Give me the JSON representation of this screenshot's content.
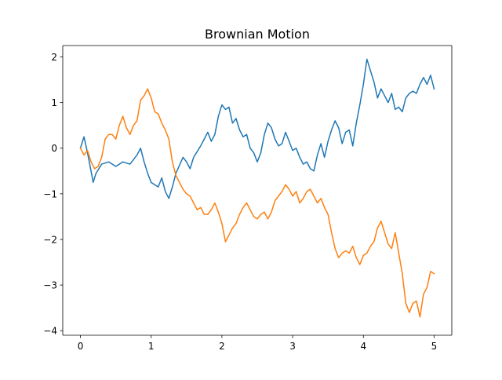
{
  "chart_data": {
    "type": "line",
    "title": "Brownian Motion",
    "xlabel": "",
    "ylabel": "",
    "xlim": [
      -0.25,
      5.25
    ],
    "ylim": [
      -4.1,
      2.25
    ],
    "x_ticks": [
      0,
      1,
      2,
      3,
      4,
      5
    ],
    "x_tick_labels": [
      "0",
      "1",
      "2",
      "3",
      "4",
      "5"
    ],
    "y_ticks": [
      -4,
      -3,
      -2,
      -1,
      0,
      1,
      2
    ],
    "y_tick_labels": [
      "−4",
      "−3",
      "−2",
      "−1",
      "0",
      "1",
      "2"
    ],
    "grid": false,
    "legend": "none",
    "series": [
      {
        "color": "#1f77b4",
        "points": [
          [
            0.0,
            0.0
          ],
          [
            0.05,
            0.25
          ],
          [
            0.1,
            -0.1
          ],
          [
            0.15,
            -0.5
          ],
          [
            0.18,
            -0.75
          ],
          [
            0.22,
            -0.55
          ],
          [
            0.3,
            -0.35
          ],
          [
            0.4,
            -0.3
          ],
          [
            0.5,
            -0.4
          ],
          [
            0.6,
            -0.3
          ],
          [
            0.7,
            -0.35
          ],
          [
            0.8,
            -0.15
          ],
          [
            0.85,
            0.0
          ],
          [
            0.9,
            -0.3
          ],
          [
            0.95,
            -0.55
          ],
          [
            1.0,
            -0.75
          ],
          [
            1.1,
            -0.85
          ],
          [
            1.15,
            -0.65
          ],
          [
            1.2,
            -0.95
          ],
          [
            1.25,
            -1.1
          ],
          [
            1.3,
            -0.85
          ],
          [
            1.35,
            -0.55
          ],
          [
            1.45,
            -0.2
          ],
          [
            1.5,
            -0.3
          ],
          [
            1.55,
            -0.45
          ],
          [
            1.6,
            -0.2
          ],
          [
            1.7,
            0.05
          ],
          [
            1.75,
            0.2
          ],
          [
            1.8,
            0.35
          ],
          [
            1.85,
            0.15
          ],
          [
            1.9,
            0.3
          ],
          [
            1.95,
            0.7
          ],
          [
            2.0,
            0.95
          ],
          [
            2.05,
            0.85
          ],
          [
            2.1,
            0.9
          ],
          [
            2.15,
            0.55
          ],
          [
            2.2,
            0.65
          ],
          [
            2.25,
            0.4
          ],
          [
            2.3,
            0.25
          ],
          [
            2.35,
            0.3
          ],
          [
            2.4,
            0.0
          ],
          [
            2.45,
            -0.1
          ],
          [
            2.5,
            -0.3
          ],
          [
            2.55,
            -0.1
          ],
          [
            2.6,
            0.3
          ],
          [
            2.65,
            0.55
          ],
          [
            2.7,
            0.45
          ],
          [
            2.75,
            0.2
          ],
          [
            2.8,
            0.05
          ],
          [
            2.85,
            0.1
          ],
          [
            2.9,
            0.35
          ],
          [
            2.95,
            0.15
          ],
          [
            3.0,
            -0.05
          ],
          [
            3.05,
            0.0
          ],
          [
            3.1,
            -0.2
          ],
          [
            3.15,
            -0.35
          ],
          [
            3.2,
            -0.3
          ],
          [
            3.25,
            -0.45
          ],
          [
            3.3,
            -0.5
          ],
          [
            3.35,
            -0.15
          ],
          [
            3.4,
            0.1
          ],
          [
            3.45,
            -0.2
          ],
          [
            3.5,
            0.15
          ],
          [
            3.55,
            0.4
          ],
          [
            3.6,
            0.6
          ],
          [
            3.65,
            0.45
          ],
          [
            3.7,
            0.1
          ],
          [
            3.75,
            0.35
          ],
          [
            3.8,
            0.4
          ],
          [
            3.85,
            0.05
          ],
          [
            3.9,
            0.55
          ],
          [
            3.95,
            0.95
          ],
          [
            4.0,
            1.4
          ],
          [
            4.05,
            1.95
          ],
          [
            4.1,
            1.7
          ],
          [
            4.15,
            1.45
          ],
          [
            4.2,
            1.1
          ],
          [
            4.25,
            1.3
          ],
          [
            4.3,
            1.15
          ],
          [
            4.35,
            1.0
          ],
          [
            4.4,
            1.2
          ],
          [
            4.45,
            0.85
          ],
          [
            4.5,
            0.9
          ],
          [
            4.55,
            0.8
          ],
          [
            4.6,
            1.1
          ],
          [
            4.65,
            1.2
          ],
          [
            4.7,
            1.25
          ],
          [
            4.75,
            1.2
          ],
          [
            4.8,
            1.4
          ],
          [
            4.85,
            1.55
          ],
          [
            4.9,
            1.4
          ],
          [
            4.95,
            1.6
          ],
          [
            5.0,
            1.3
          ]
        ]
      },
      {
        "color": "#ff7f0e",
        "points": [
          [
            0.0,
            0.0
          ],
          [
            0.05,
            -0.15
          ],
          [
            0.1,
            -0.05
          ],
          [
            0.15,
            -0.3
          ],
          [
            0.2,
            -0.45
          ],
          [
            0.25,
            -0.4
          ],
          [
            0.3,
            -0.2
          ],
          [
            0.35,
            0.2
          ],
          [
            0.4,
            0.3
          ],
          [
            0.45,
            0.3
          ],
          [
            0.5,
            0.2
          ],
          [
            0.55,
            0.5
          ],
          [
            0.6,
            0.7
          ],
          [
            0.65,
            0.45
          ],
          [
            0.7,
            0.3
          ],
          [
            0.75,
            0.5
          ],
          [
            0.8,
            0.6
          ],
          [
            0.85,
            1.05
          ],
          [
            0.9,
            1.15
          ],
          [
            0.95,
            1.3
          ],
          [
            1.0,
            1.1
          ],
          [
            1.05,
            0.8
          ],
          [
            1.1,
            0.75
          ],
          [
            1.15,
            0.55
          ],
          [
            1.2,
            0.4
          ],
          [
            1.25,
            0.2
          ],
          [
            1.3,
            -0.3
          ],
          [
            1.35,
            -0.6
          ],
          [
            1.4,
            -0.75
          ],
          [
            1.45,
            -0.9
          ],
          [
            1.5,
            -1.0
          ],
          [
            1.55,
            -1.05
          ],
          [
            1.6,
            -1.2
          ],
          [
            1.65,
            -1.35
          ],
          [
            1.7,
            -1.3
          ],
          [
            1.75,
            -1.45
          ],
          [
            1.8,
            -1.45
          ],
          [
            1.85,
            -1.35
          ],
          [
            1.9,
            -1.2
          ],
          [
            1.95,
            -1.4
          ],
          [
            2.0,
            -1.65
          ],
          [
            2.05,
            -2.05
          ],
          [
            2.1,
            -1.9
          ],
          [
            2.15,
            -1.75
          ],
          [
            2.2,
            -1.65
          ],
          [
            2.25,
            -1.45
          ],
          [
            2.3,
            -1.3
          ],
          [
            2.35,
            -1.2
          ],
          [
            2.4,
            -1.35
          ],
          [
            2.45,
            -1.5
          ],
          [
            2.5,
            -1.55
          ],
          [
            2.55,
            -1.45
          ],
          [
            2.6,
            -1.4
          ],
          [
            2.65,
            -1.55
          ],
          [
            2.7,
            -1.4
          ],
          [
            2.75,
            -1.15
          ],
          [
            2.8,
            -1.05
          ],
          [
            2.85,
            -0.95
          ],
          [
            2.9,
            -0.8
          ],
          [
            2.95,
            -0.9
          ],
          [
            3.0,
            -1.05
          ],
          [
            3.05,
            -0.95
          ],
          [
            3.1,
            -1.2
          ],
          [
            3.15,
            -1.1
          ],
          [
            3.2,
            -0.95
          ],
          [
            3.25,
            -0.9
          ],
          [
            3.3,
            -1.05
          ],
          [
            3.35,
            -1.2
          ],
          [
            3.4,
            -1.1
          ],
          [
            3.45,
            -1.3
          ],
          [
            3.5,
            -1.45
          ],
          [
            3.55,
            -1.85
          ],
          [
            3.6,
            -2.2
          ],
          [
            3.65,
            -2.4
          ],
          [
            3.7,
            -2.3
          ],
          [
            3.75,
            -2.25
          ],
          [
            3.8,
            -2.3
          ],
          [
            3.85,
            -2.15
          ],
          [
            3.9,
            -2.4
          ],
          [
            3.95,
            -2.55
          ],
          [
            4.0,
            -2.35
          ],
          [
            4.05,
            -2.3
          ],
          [
            4.1,
            -2.15
          ],
          [
            4.15,
            -2.05
          ],
          [
            4.2,
            -1.75
          ],
          [
            4.25,
            -1.6
          ],
          [
            4.3,
            -1.85
          ],
          [
            4.35,
            -2.1
          ],
          [
            4.4,
            -2.2
          ],
          [
            4.45,
            -1.85
          ],
          [
            4.5,
            -2.3
          ],
          [
            4.55,
            -2.75
          ],
          [
            4.6,
            -3.4
          ],
          [
            4.65,
            -3.6
          ],
          [
            4.7,
            -3.4
          ],
          [
            4.75,
            -3.35
          ],
          [
            4.8,
            -3.7
          ],
          [
            4.85,
            -3.2
          ],
          [
            4.9,
            -3.05
          ],
          [
            4.95,
            -2.7
          ],
          [
            5.0,
            -2.75
          ]
        ]
      }
    ]
  }
}
